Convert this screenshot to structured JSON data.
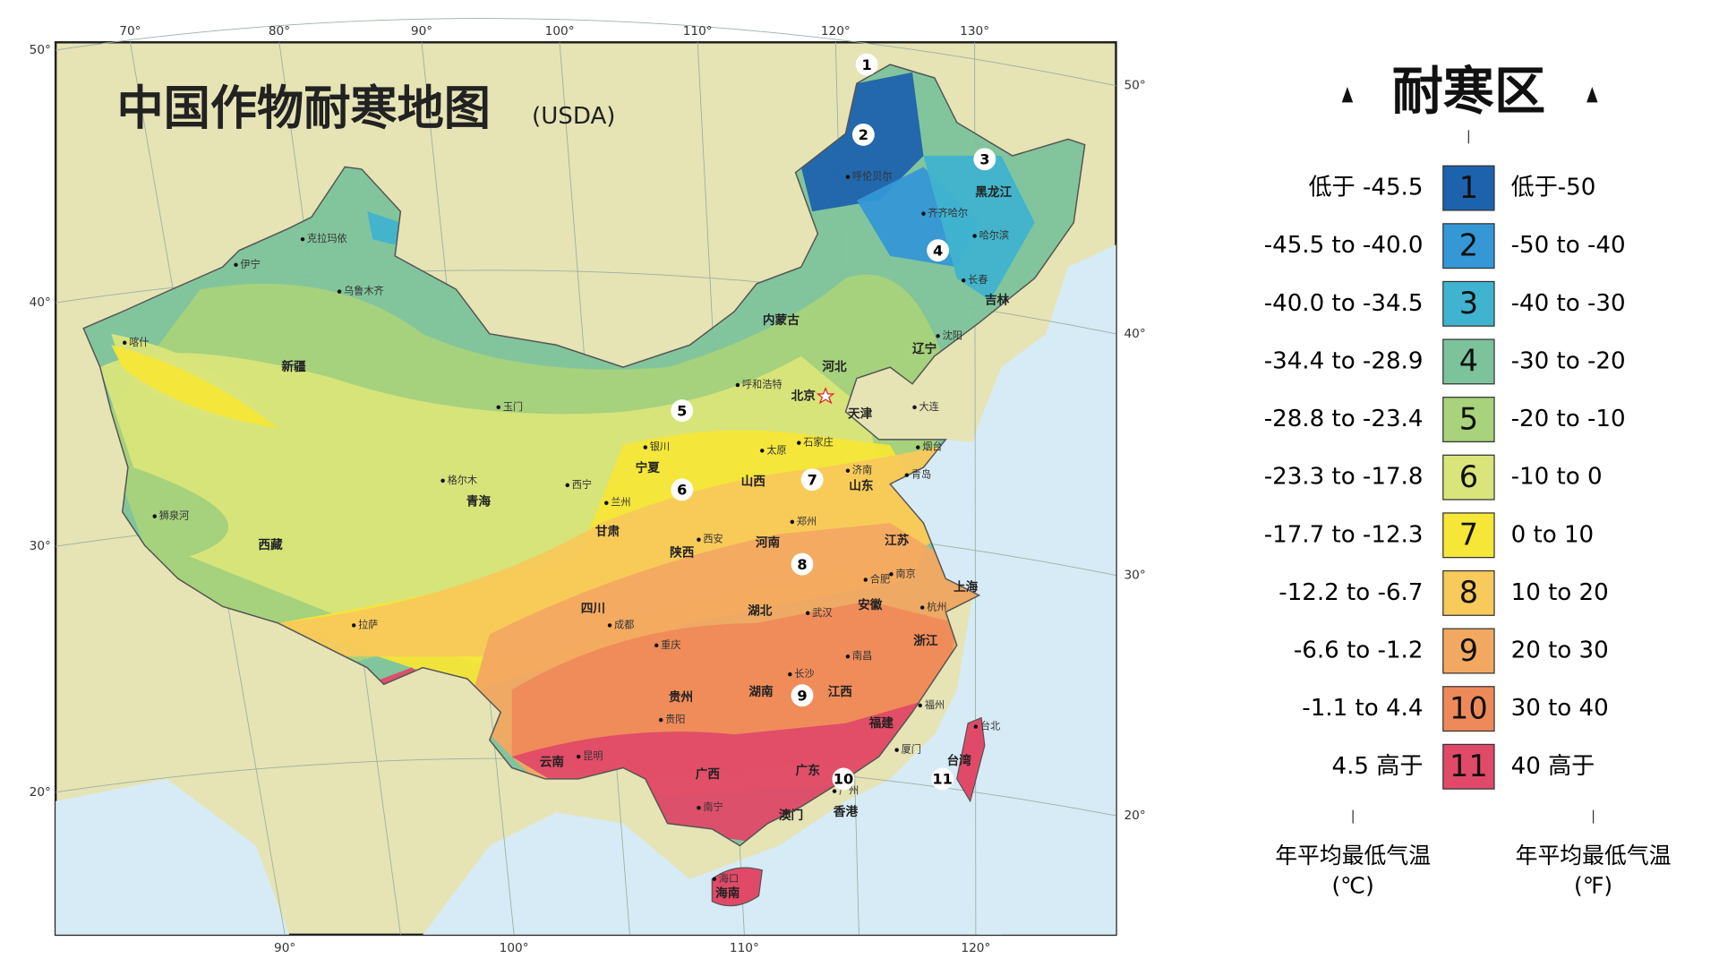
{
  "map": {
    "title": "中国作物耐寒地图",
    "subtitle": "(USDA)",
    "lon_top": [
      "70°",
      "80°",
      "90°",
      "100°",
      "110°",
      "120°",
      "130°"
    ],
    "lon_bottom": [
      "90°",
      "100°",
      "110°",
      "120°"
    ],
    "lat_left": [
      "50°",
      "40°",
      "30°",
      "20°"
    ],
    "lat_right": [
      "50°",
      "40°",
      "30°",
      "20°"
    ],
    "provinces": [
      "新疆",
      "西藏",
      "青海",
      "甘肃",
      "四川",
      "云南",
      "贵州",
      "广西",
      "广东",
      "湖南",
      "湖北",
      "河南",
      "陕西",
      "山西",
      "宁夏",
      "内蒙古",
      "河北",
      "山东",
      "江苏",
      "安徽",
      "浙江",
      "江西",
      "福建",
      "黑龙江",
      "吉林",
      "辽宁",
      "北京",
      "天津",
      "上海",
      "台湾",
      "海南",
      "香港",
      "澳门"
    ],
    "cities": [
      "喀什",
      "伊宁",
      "克拉玛依",
      "乌鲁木齐",
      "玉门",
      "格尔木",
      "狮泉河",
      "拉萨",
      "西宁",
      "兰州",
      "银川",
      "呼和浩特",
      "太原",
      "石家庄",
      "济南",
      "烟台",
      "青岛",
      "西安",
      "郑州",
      "成都",
      "重庆",
      "武汉",
      "合肥",
      "南京",
      "杭州",
      "长沙",
      "南昌",
      "福州",
      "厦门",
      "贵阳",
      "昆明",
      "南宁",
      "广州",
      "台北",
      "大连",
      "沈阳",
      "长春",
      "哈尔滨",
      "齐齐哈尔",
      "呼伦贝尔",
      "海口"
    ],
    "zone_markers": [
      "1",
      "2",
      "3",
      "4",
      "5",
      "6",
      "7",
      "8",
      "9",
      "10",
      "11"
    ]
  },
  "legend": {
    "title": "耐寒区",
    "rows": [
      {
        "celsius": "低于 -45.5",
        "zone": "1",
        "fahrenheit": "低于-50",
        "color": "#1d62ad"
      },
      {
        "celsius": "-45.5 to -40.0",
        "zone": "2",
        "fahrenheit": "-50 to -40",
        "color": "#3597d6"
      },
      {
        "celsius": "-40.0 to -34.5",
        "zone": "3",
        "fahrenheit": "-40 to -30",
        "color": "#3fb3cf"
      },
      {
        "celsius": "-34.4 to -28.9",
        "zone": "4",
        "fahrenheit": "-30 to -20",
        "color": "#7cc39b"
      },
      {
        "celsius": "-28.8 to -23.4",
        "zone": "5",
        "fahrenheit": "-20 to -10",
        "color": "#a8d27b"
      },
      {
        "celsius": "-23.3 to -17.8",
        "zone": "6",
        "fahrenheit": "-10 to  0",
        "color": "#d9e57a"
      },
      {
        "celsius": "-17.7 to -12.3",
        "zone": "7",
        "fahrenheit": "0 to 10",
        "color": "#f6e637"
      },
      {
        "celsius": "-12.2 to -6.7",
        "zone": "8",
        "fahrenheit": "10 to 20",
        "color": "#f8c95b"
      },
      {
        "celsius": "-6.6 to -1.2",
        "zone": "9",
        "fahrenheit": "20 to 30",
        "color": "#f3a862"
      },
      {
        "celsius": "-1.1 to 4.4",
        "zone": "10",
        "fahrenheit": "30 to 40",
        "color": "#ee8a5a"
      },
      {
        "celsius": "4.5 高于",
        "zone": "11",
        "fahrenheit": "40 高于",
        "color": "#e04a68"
      }
    ],
    "footer_c": "年平均最低气温",
    "footer_c_unit": "(℃)",
    "footer_f": "年平均最低气温",
    "footer_f_unit": "(℉)"
  }
}
